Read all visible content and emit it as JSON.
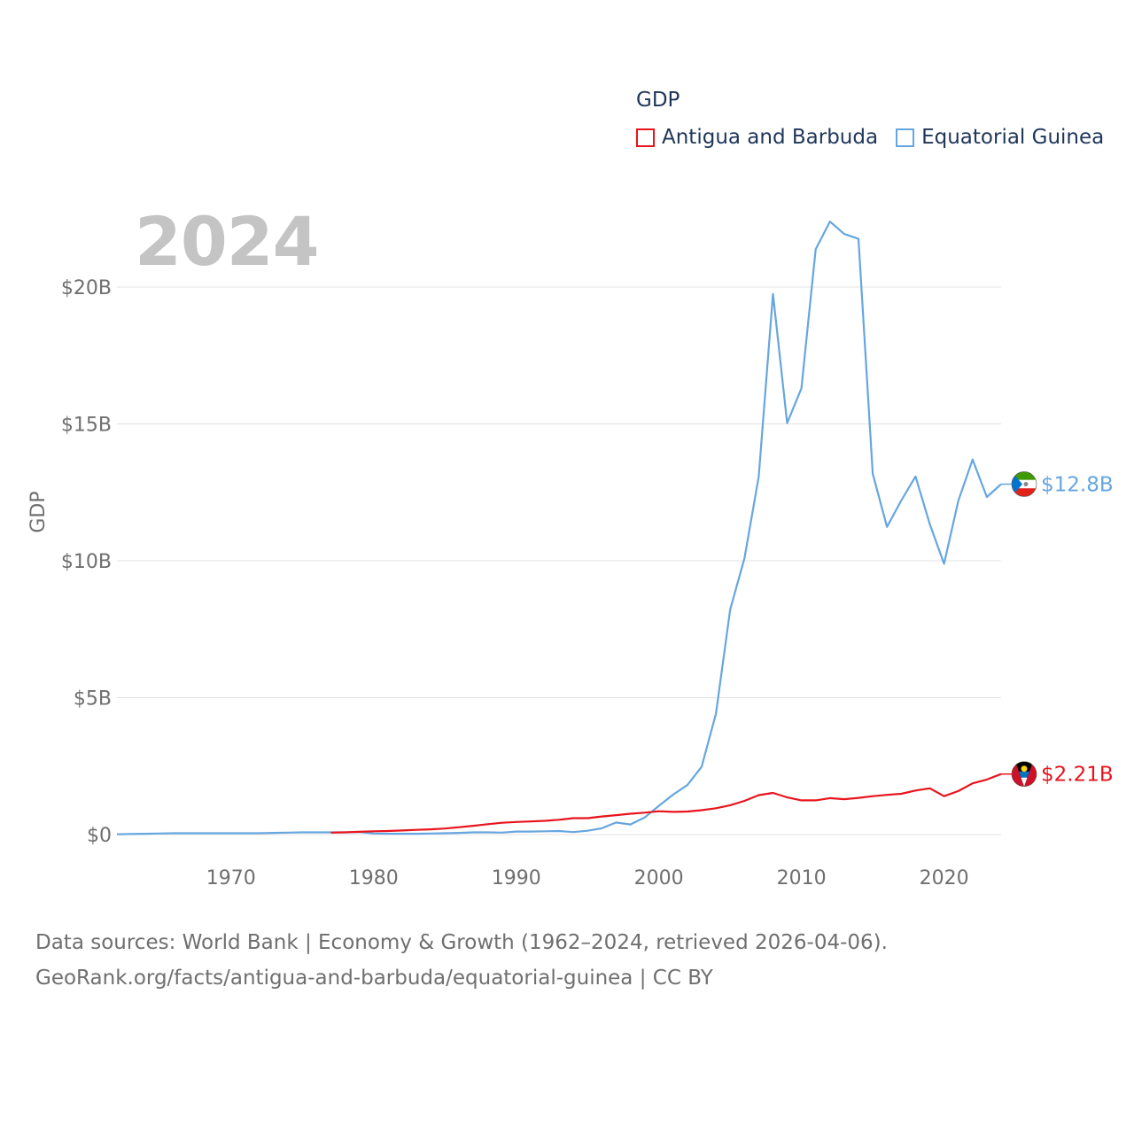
{
  "legend": {
    "title": "GDP",
    "items": [
      {
        "name": "Antigua and Barbuda",
        "color": "#e8141c"
      },
      {
        "name": "Equatorial Guinea",
        "color": "#66a6e0"
      }
    ]
  },
  "year_label": "2024",
  "source": {
    "line1": "Data sources: World Bank | Economy & Growth (1962–2024, retrieved 2026-04-06).",
    "line2": "GeoRank.org/facts/antigua-and-barbuda/equatorial-guinea | CC BY"
  },
  "chart_data": {
    "type": "line",
    "title": "",
    "xlabel": "",
    "ylabel": "GDP",
    "xlim": [
      1962,
      2024
    ],
    "ylim": [
      0,
      20
    ],
    "y_unit": "billion USD",
    "x_ticks": [
      1970,
      1980,
      1990,
      2000,
      2010,
      2020
    ],
    "y_ticks": [
      {
        "value": 0,
        "label": "$0"
      },
      {
        "value": 5,
        "label": "$5B"
      },
      {
        "value": 10,
        "label": "$10B"
      },
      {
        "value": 15,
        "label": "$15B"
      },
      {
        "value": 20,
        "label": "$20B"
      }
    ],
    "grid": true,
    "series": [
      {
        "name": "Equatorial Guinea",
        "color": "#66a6e0",
        "end_label": "$12.8B",
        "x": [
          1962,
          1963,
          1964,
          1965,
          1966,
          1967,
          1968,
          1969,
          1970,
          1971,
          1972,
          1973,
          1974,
          1975,
          1976,
          1977,
          1978,
          1979,
          1980,
          1981,
          1982,
          1983,
          1984,
          1985,
          1986,
          1987,
          1988,
          1989,
          1990,
          1991,
          1992,
          1993,
          1994,
          1995,
          1996,
          1997,
          1998,
          1999,
          2000,
          2001,
          2002,
          2003,
          2004,
          2005,
          2006,
          2007,
          2008,
          2009,
          2010,
          2011,
          2012,
          2013,
          2014,
          2015,
          2016,
          2017,
          2018,
          2019,
          2020,
          2021,
          2022,
          2023,
          2024
        ],
        "values": [
          0.01,
          0.02,
          0.03,
          0.04,
          0.05,
          0.05,
          0.05,
          0.05,
          0.05,
          0.05,
          0.05,
          0.06,
          0.07,
          0.08,
          0.08,
          0.08,
          0.08,
          0.09,
          0.04,
          0.03,
          0.03,
          0.03,
          0.04,
          0.05,
          0.06,
          0.08,
          0.08,
          0.07,
          0.11,
          0.11,
          0.12,
          0.13,
          0.09,
          0.14,
          0.23,
          0.44,
          0.37,
          0.62,
          1.05,
          1.46,
          1.81,
          2.48,
          4.41,
          8.22,
          10.09,
          13.07,
          19.75,
          15.03,
          16.3,
          21.38,
          22.39,
          21.94,
          21.76,
          13.18,
          11.24,
          12.2,
          13.08,
          11.34,
          9.89,
          12.19,
          13.7,
          12.33,
          12.8
        ]
      },
      {
        "name": "Antigua and Barbuda",
        "color": "#e8141c",
        "end_label": "$2.21B",
        "x": [
          1977,
          1978,
          1979,
          1980,
          1981,
          1982,
          1983,
          1984,
          1985,
          1986,
          1987,
          1988,
          1989,
          1990,
          1991,
          1992,
          1993,
          1994,
          1995,
          1996,
          1997,
          1998,
          1999,
          2000,
          2001,
          2002,
          2003,
          2004,
          2005,
          2006,
          2007,
          2008,
          2009,
          2010,
          2011,
          2012,
          2013,
          2014,
          2015,
          2016,
          2017,
          2018,
          2019,
          2020,
          2021,
          2022,
          2023,
          2024
        ],
        "values": [
          0.07,
          0.08,
          0.1,
          0.12,
          0.13,
          0.15,
          0.17,
          0.19,
          0.22,
          0.27,
          0.32,
          0.38,
          0.43,
          0.46,
          0.48,
          0.5,
          0.54,
          0.6,
          0.6,
          0.66,
          0.71,
          0.76,
          0.8,
          0.85,
          0.83,
          0.84,
          0.89,
          0.96,
          1.07,
          1.23,
          1.44,
          1.52,
          1.36,
          1.25,
          1.25,
          1.33,
          1.29,
          1.34,
          1.4,
          1.45,
          1.49,
          1.61,
          1.69,
          1.4,
          1.59,
          1.87,
          2.01,
          2.21
        ]
      }
    ]
  }
}
